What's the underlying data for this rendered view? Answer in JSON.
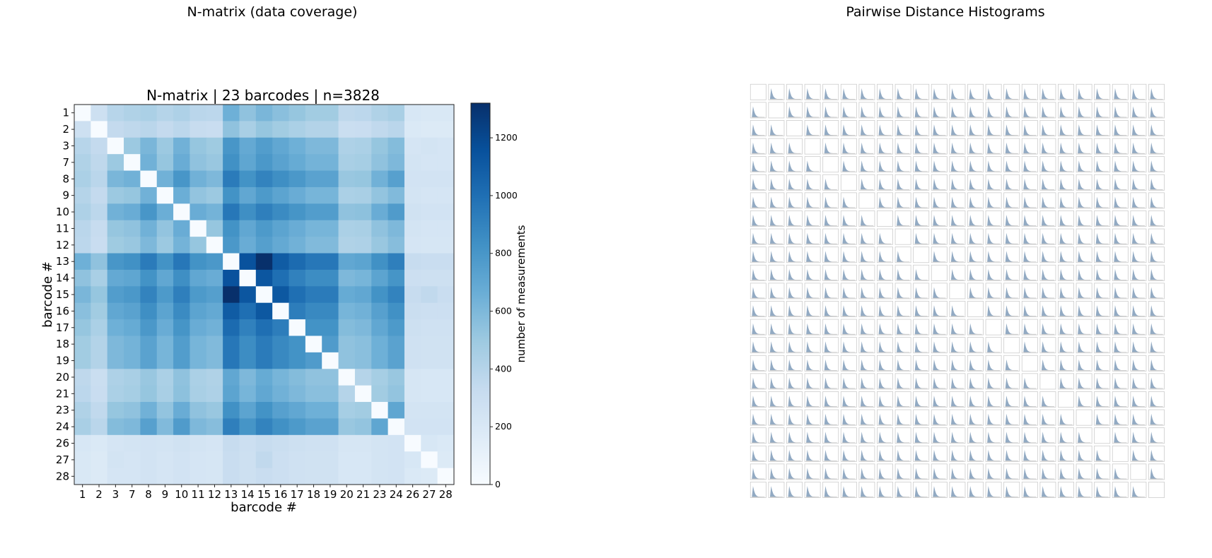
{
  "panels": {
    "left_title": "N-matrix (data coverage)",
    "right_title": "Pairwise Distance Histograms"
  },
  "chart_data": [
    {
      "type": "heatmap",
      "title": "N-matrix | 23 barcodes | n=3828",
      "xlabel": "barcode #",
      "ylabel": "barcode #",
      "labels": [
        "1",
        "2",
        "3",
        "7",
        "8",
        "9",
        "10",
        "11",
        "12",
        "13",
        "14",
        "15",
        "16",
        "17",
        "18",
        "19",
        "20",
        "21",
        "23",
        "24",
        "26",
        "27",
        "28"
      ],
      "colorbar": {
        "label": "number of measurements",
        "range": [
          0,
          1320
        ],
        "ticks": [
          0,
          200,
          400,
          600,
          800,
          1000,
          1200
        ]
      },
      "colormap": [
        "#f7fbff",
        "#deebf7",
        "#c6dbef",
        "#9ecae1",
        "#6baed6",
        "#4292c6",
        "#2171b5",
        "#08519c",
        "#08306b"
      ],
      "values": [
        [
          0,
          280,
          390,
          420,
          440,
          400,
          430,
          380,
          370,
          650,
          540,
          610,
          560,
          520,
          480,
          480,
          360,
          370,
          420,
          450,
          210,
          200,
          200
        ],
        [
          280,
          0,
          340,
          360,
          380,
          340,
          370,
          320,
          310,
          540,
          450,
          520,
          480,
          440,
          410,
          410,
          300,
          310,
          350,
          380,
          190,
          180,
          180
        ],
        [
          390,
          340,
          0,
          500,
          610,
          500,
          640,
          520,
          490,
          800,
          690,
          760,
          700,
          650,
          600,
          600,
          430,
          440,
          520,
          580,
          230,
          240,
          230
        ],
        [
          420,
          360,
          500,
          0,
          640,
          520,
          670,
          540,
          510,
          830,
          710,
          790,
          730,
          680,
          630,
          630,
          450,
          460,
          540,
          600,
          240,
          230,
          230
        ],
        [
          440,
          380,
          610,
          640,
          0,
          640,
          800,
          640,
          600,
          940,
          820,
          900,
          840,
          790,
          730,
          730,
          510,
          520,
          640,
          740,
          250,
          250,
          250
        ],
        [
          400,
          340,
          500,
          520,
          640,
          0,
          660,
          530,
          500,
          820,
          700,
          780,
          720,
          670,
          620,
          620,
          440,
          450,
          530,
          590,
          240,
          230,
          230
        ],
        [
          430,
          370,
          640,
          670,
          800,
          660,
          0,
          670,
          630,
          960,
          840,
          920,
          860,
          810,
          760,
          760,
          540,
          550,
          670,
          770,
          260,
          250,
          250
        ],
        [
          380,
          320,
          520,
          540,
          640,
          530,
          670,
          0,
          520,
          820,
          700,
          780,
          720,
          670,
          620,
          620,
          440,
          450,
          540,
          600,
          240,
          230,
          230
        ],
        [
          370,
          310,
          490,
          510,
          600,
          500,
          630,
          520,
          0,
          790,
          670,
          750,
          690,
          640,
          590,
          590,
          420,
          430,
          510,
          570,
          230,
          220,
          220
        ],
        [
          650,
          540,
          800,
          830,
          940,
          820,
          960,
          820,
          790,
          0,
          1150,
          1320,
          1100,
          1020,
          960,
          960,
          700,
          720,
          830,
          920,
          320,
          310,
          310
        ],
        [
          540,
          450,
          690,
          710,
          820,
          700,
          840,
          700,
          670,
          1150,
          0,
          1130,
          1000,
          910,
          850,
          850,
          600,
          620,
          720,
          810,
          290,
          280,
          280
        ],
        [
          610,
          520,
          760,
          790,
          900,
          780,
          920,
          780,
          750,
          1320,
          1130,
          0,
          1120,
          1000,
          940,
          940,
          680,
          700,
          820,
          900,
          320,
          350,
          310
        ],
        [
          560,
          480,
          700,
          730,
          840,
          720,
          860,
          720,
          690,
          1100,
          1000,
          1120,
          0,
          930,
          870,
          870,
          620,
          640,
          740,
          830,
          300,
          290,
          290
        ],
        [
          520,
          440,
          650,
          680,
          790,
          670,
          810,
          670,
          640,
          1020,
          910,
          1000,
          930,
          0,
          820,
          820,
          580,
          600,
          700,
          780,
          280,
          270,
          270
        ],
        [
          480,
          410,
          600,
          630,
          730,
          620,
          760,
          620,
          590,
          960,
          850,
          940,
          870,
          820,
          0,
          770,
          540,
          560,
          650,
          730,
          270,
          260,
          260
        ],
        [
          480,
          410,
          600,
          630,
          730,
          620,
          760,
          620,
          590,
          960,
          850,
          940,
          870,
          820,
          770,
          0,
          540,
          560,
          650,
          730,
          270,
          260,
          260
        ],
        [
          360,
          300,
          430,
          450,
          510,
          440,
          540,
          440,
          420,
          700,
          600,
          680,
          620,
          580,
          540,
          540,
          0,
          400,
          460,
          510,
          220,
          210,
          210
        ],
        [
          370,
          310,
          440,
          460,
          520,
          450,
          550,
          450,
          430,
          720,
          620,
          700,
          640,
          600,
          560,
          560,
          400,
          0,
          480,
          530,
          220,
          210,
          210
        ],
        [
          420,
          350,
          520,
          540,
          640,
          530,
          670,
          540,
          510,
          830,
          720,
          820,
          740,
          700,
          650,
          650,
          460,
          480,
          0,
          710,
          240,
          240,
          240
        ],
        [
          450,
          380,
          580,
          600,
          740,
          590,
          770,
          600,
          570,
          920,
          810,
          900,
          830,
          780,
          730,
          730,
          510,
          530,
          710,
          0,
          250,
          250,
          250
        ],
        [
          210,
          190,
          230,
          240,
          250,
          240,
          260,
          240,
          230,
          320,
          290,
          320,
          300,
          280,
          270,
          270,
          220,
          220,
          240,
          250,
          0,
          210,
          190
        ],
        [
          200,
          180,
          240,
          230,
          250,
          230,
          250,
          230,
          220,
          310,
          280,
          350,
          290,
          270,
          260,
          260,
          210,
          210,
          240,
          250,
          210,
          0,
          180
        ],
        [
          200,
          180,
          230,
          230,
          250,
          230,
          250,
          230,
          220,
          310,
          280,
          310,
          290,
          270,
          260,
          260,
          210,
          210,
          240,
          250,
          190,
          180,
          0
        ]
      ]
    },
    {
      "type": "histogram-grid",
      "title": "",
      "rows": 23,
      "cols": 23,
      "diagonal": "empty",
      "color": "#7f9bb8"
    }
  ]
}
